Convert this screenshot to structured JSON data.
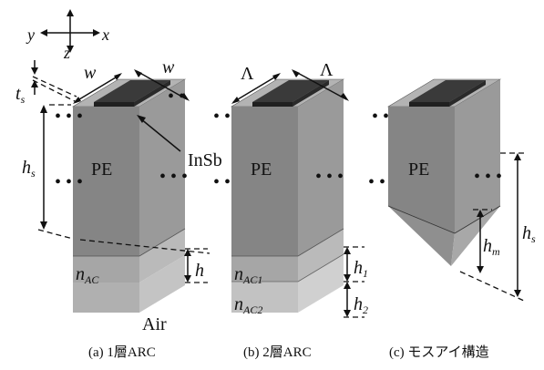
{
  "axes": {
    "x": "x",
    "y": "y",
    "z": "z"
  },
  "panel_a": {
    "caption": "(a) 1層ARC",
    "width_label": "w",
    "thickness_label": "t",
    "thickness_sub": "s",
    "height_label": "h",
    "height_sub": "s",
    "body_label": "PE",
    "top_label": "InSb",
    "arc_label": "n",
    "arc_sub": "AC",
    "arc_height_label": "h",
    "substrate_label": "Air"
  },
  "panel_b": {
    "caption": "(b) 2層ARC",
    "period_label": "Λ",
    "body_label": "PE",
    "arc1_label": "n",
    "arc1_sub": "AC1",
    "arc2_label": "n",
    "arc2_sub": "AC2",
    "h1_label": "h",
    "h1_sub": "1",
    "h2_label": "h",
    "h2_sub": "2"
  },
  "panel_c": {
    "caption": "(c) モスアイ構造",
    "body_label": "PE",
    "height_label": "h",
    "height_sub": "s",
    "moth_label": "h",
    "moth_sub": "m"
  },
  "colors": {
    "pe_front": "#858585",
    "pe_side": "#9a9a9a",
    "pe_top": "#b3b3b3",
    "insb_top": "#3a3a3a",
    "insb_side": "#202020",
    "arc_front": "#a6a6a6",
    "arc_side": "#bababa",
    "arc2_front": "#c2c2c2",
    "arc2_side": "#d0d0d0"
  }
}
